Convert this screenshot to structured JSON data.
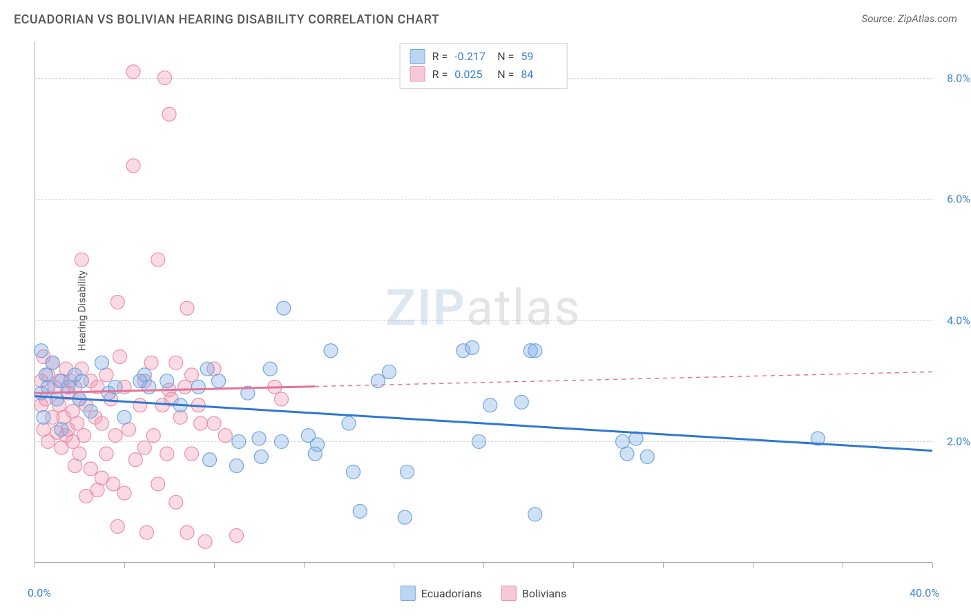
{
  "title": "ECUADORIAN VS BOLIVIAN HEARING DISABILITY CORRELATION CHART",
  "source": "Source: ZipAtlas.com",
  "watermark": {
    "part1": "ZIP",
    "part2": "atlas"
  },
  "yaxis_label": "Hearing Disability",
  "chart": {
    "type": "scatter",
    "x_range": [
      0,
      40
    ],
    "y_range": [
      0,
      8.6
    ],
    "x_min_label": "0.0%",
    "x_max_label": "40.0%",
    "y_ticks": [
      {
        "v": 2.0,
        "label": "2.0%"
      },
      {
        "v": 4.0,
        "label": "4.0%"
      },
      {
        "v": 6.0,
        "label": "6.0%"
      },
      {
        "v": 8.0,
        "label": "8.0%"
      }
    ],
    "x_tick_positions": [
      0,
      4,
      8,
      12,
      16,
      20,
      24,
      28,
      32,
      36,
      40
    ],
    "background_color": "#ffffff",
    "grid_color": "#d5d5d5",
    "axis_color": "#aaaaaa",
    "tick_label_color": "#3b82d6",
    "marker_radius": 10,
    "marker_stroke_width": 1.2,
    "trend_line_width": 3,
    "series": [
      {
        "name": "Ecuadorians",
        "color_fill": "rgba(120,170,230,0.35)",
        "color_stroke": "#6fa6de",
        "swatch_fill": "#bcd6f2",
        "swatch_border": "#6fa6de",
        "R": "-0.217",
        "N": "59",
        "trend": {
          "x1": 0,
          "y1": 2.75,
          "x2": 40,
          "y2": 1.85,
          "color": "#2f78cf",
          "solid_until_x": 40
        },
        "points": [
          [
            0.3,
            3.5
          ],
          [
            0.3,
            2.8
          ],
          [
            0.5,
            3.1
          ],
          [
            0.4,
            2.4
          ],
          [
            0.6,
            2.9
          ],
          [
            0.8,
            3.3
          ],
          [
            1.0,
            2.7
          ],
          [
            1.2,
            3.0
          ],
          [
            1.2,
            2.2
          ],
          [
            1.5,
            2.9
          ],
          [
            1.8,
            3.1
          ],
          [
            2.0,
            2.7
          ],
          [
            2.1,
            3.0
          ],
          [
            2.5,
            2.5
          ],
          [
            3.0,
            3.3
          ],
          [
            3.3,
            2.8
          ],
          [
            3.6,
            2.9
          ],
          [
            4.0,
            2.4
          ],
          [
            4.7,
            3.0
          ],
          [
            4.9,
            3.1
          ],
          [
            5.1,
            2.9
          ],
          [
            5.9,
            3.0
          ],
          [
            6.5,
            2.6
          ],
          [
            7.3,
            2.9
          ],
          [
            7.7,
            3.2
          ],
          [
            7.8,
            1.7
          ],
          [
            8.2,
            3.0
          ],
          [
            9.0,
            1.6
          ],
          [
            9.1,
            2.0
          ],
          [
            9.5,
            2.8
          ],
          [
            10.0,
            2.05
          ],
          [
            10.1,
            1.75
          ],
          [
            10.5,
            3.2
          ],
          [
            11.0,
            2.0
          ],
          [
            11.1,
            4.2
          ],
          [
            12.2,
            2.1
          ],
          [
            12.5,
            1.8
          ],
          [
            12.6,
            1.95
          ],
          [
            13.2,
            3.5
          ],
          [
            14.0,
            2.3
          ],
          [
            14.5,
            0.85
          ],
          [
            14.2,
            1.5
          ],
          [
            15.8,
            3.15
          ],
          [
            16.6,
            1.5
          ],
          [
            16.5,
            0.75
          ],
          [
            19.1,
            3.5
          ],
          [
            19.5,
            3.55
          ],
          [
            20.3,
            2.6
          ],
          [
            21.7,
            2.65
          ],
          [
            22.1,
            3.5
          ],
          [
            22.3,
            3.5
          ],
          [
            22.3,
            0.8
          ],
          [
            15.3,
            3.0
          ],
          [
            26.2,
            2.0
          ],
          [
            26.4,
            1.8
          ],
          [
            26.8,
            2.05
          ],
          [
            27.3,
            1.75
          ],
          [
            34.9,
            2.05
          ],
          [
            19.8,
            2.0
          ]
        ]
      },
      {
        "name": "Bolivians",
        "color_fill": "rgba(240,150,175,0.35)",
        "color_stroke": "#e98fab",
        "swatch_fill": "#f6c9d6",
        "swatch_border": "#e98fab",
        "R": "0.025",
        "N": "84",
        "trend": {
          "x1": 0,
          "y1": 2.8,
          "x2": 40,
          "y2": 3.15,
          "color": "#e47396",
          "solid_until_x": 12.5
        },
        "points": [
          [
            0.3,
            2.6
          ],
          [
            0.3,
            3.0
          ],
          [
            0.4,
            3.4
          ],
          [
            0.4,
            2.2
          ],
          [
            0.5,
            2.7
          ],
          [
            0.6,
            3.1
          ],
          [
            0.6,
            2.0
          ],
          [
            0.8,
            3.3
          ],
          [
            0.8,
            2.4
          ],
          [
            0.9,
            2.9
          ],
          [
            1.0,
            2.15
          ],
          [
            1.1,
            2.6
          ],
          [
            1.1,
            3.0
          ],
          [
            1.2,
            1.9
          ],
          [
            1.3,
            2.4
          ],
          [
            1.4,
            3.2
          ],
          [
            1.4,
            2.1
          ],
          [
            1.5,
            2.8
          ],
          [
            1.5,
            2.2
          ],
          [
            1.6,
            3.0
          ],
          [
            1.7,
            2.0
          ],
          [
            1.7,
            2.5
          ],
          [
            1.8,
            1.6
          ],
          [
            1.8,
            2.9
          ],
          [
            1.9,
            2.3
          ],
          [
            2.0,
            1.8
          ],
          [
            2.0,
            2.7
          ],
          [
            2.1,
            3.2
          ],
          [
            2.1,
            5.0
          ],
          [
            2.2,
            2.1
          ],
          [
            2.3,
            2.6
          ],
          [
            2.3,
            1.1
          ],
          [
            2.5,
            3.0
          ],
          [
            2.5,
            1.55
          ],
          [
            2.7,
            2.4
          ],
          [
            2.8,
            1.2
          ],
          [
            2.8,
            2.9
          ],
          [
            3.0,
            1.4
          ],
          [
            3.0,
            2.3
          ],
          [
            3.2,
            3.1
          ],
          [
            3.2,
            1.8
          ],
          [
            3.4,
            2.7
          ],
          [
            3.5,
            1.3
          ],
          [
            3.7,
            4.3
          ],
          [
            3.6,
            2.1
          ],
          [
            3.7,
            0.6
          ],
          [
            3.8,
            3.4
          ],
          [
            4.0,
            2.9
          ],
          [
            4.0,
            1.15
          ],
          [
            4.2,
            2.2
          ],
          [
            4.4,
            6.55
          ],
          [
            4.4,
            8.1
          ],
          [
            4.5,
            1.7
          ],
          [
            4.7,
            2.6
          ],
          [
            4.9,
            3.0
          ],
          [
            4.9,
            1.9
          ],
          [
            5.0,
            0.5
          ],
          [
            5.2,
            3.3
          ],
          [
            5.3,
            2.1
          ],
          [
            5.5,
            1.3
          ],
          [
            5.5,
            5.0
          ],
          [
            5.7,
            2.6
          ],
          [
            5.8,
            8.0
          ],
          [
            5.9,
            1.8
          ],
          [
            6.0,
            2.85
          ],
          [
            6.0,
            7.4
          ],
          [
            6.1,
            2.7
          ],
          [
            6.3,
            3.3
          ],
          [
            6.3,
            1.0
          ],
          [
            6.5,
            2.4
          ],
          [
            6.7,
            2.9
          ],
          [
            6.8,
            4.2
          ],
          [
            6.8,
            0.5
          ],
          [
            7.0,
            3.1
          ],
          [
            7.0,
            1.8
          ],
          [
            7.3,
            2.6
          ],
          [
            7.4,
            2.3
          ],
          [
            7.6,
            0.35
          ],
          [
            8.0,
            3.2
          ],
          [
            8.0,
            2.3
          ],
          [
            8.5,
            2.1
          ],
          [
            9.0,
            0.45
          ],
          [
            10.7,
            2.9
          ],
          [
            11.0,
            2.7
          ]
        ]
      }
    ]
  },
  "rn_labels": {
    "R": "R =",
    "N": "N ="
  },
  "legend_labels": {
    "ecuadorians": "Ecuadorians",
    "bolivians": "Bolivians"
  }
}
